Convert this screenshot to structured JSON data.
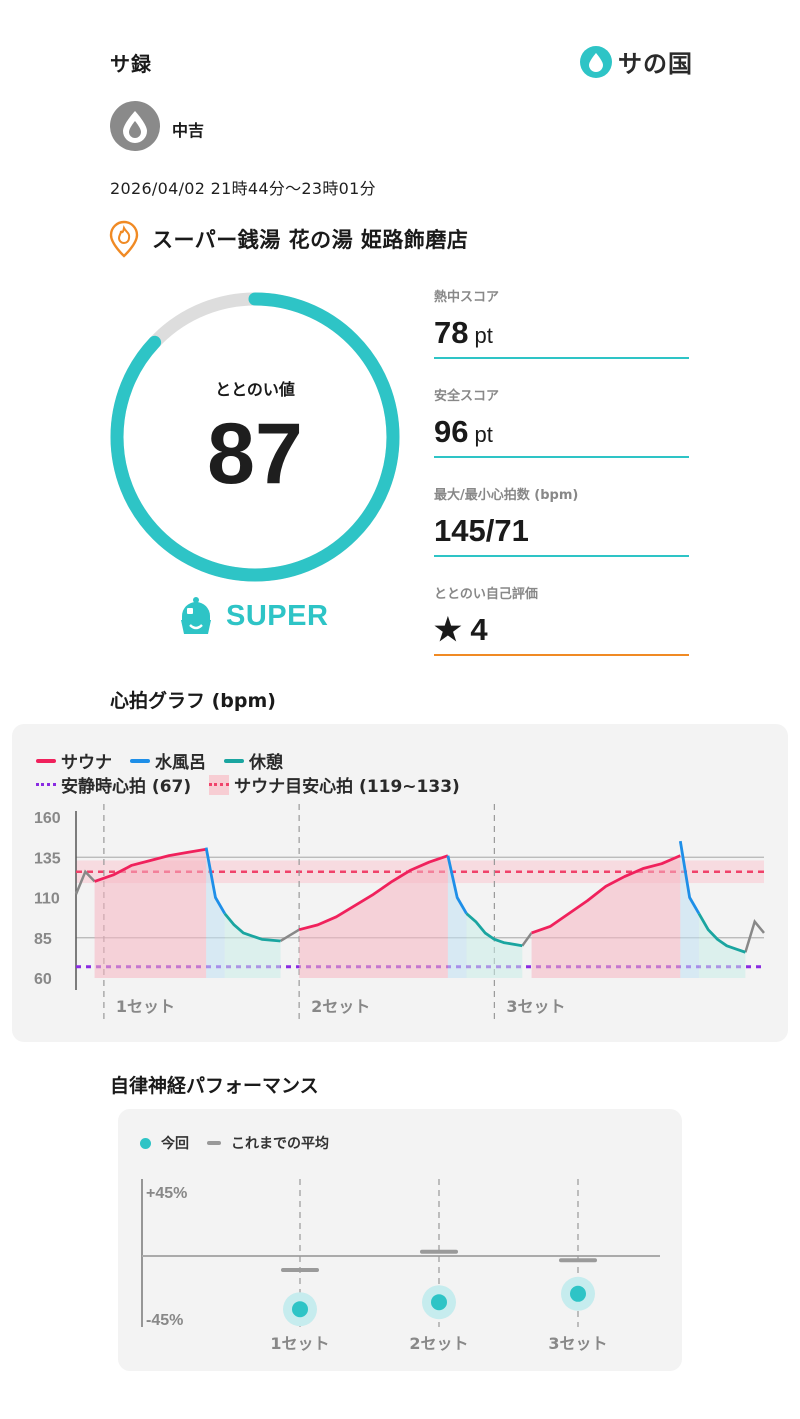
{
  "header": {
    "title": "サ録",
    "brand_name": "サの国"
  },
  "user": {
    "name": "中吉",
    "avatar_icon": "drop-icon"
  },
  "session": {
    "datetime": "2026/04/02 21時44分〜23時01分",
    "facility_name": "スーパー銭湯 花の湯 姫路飾磨店",
    "facility_icon": "sauna-location-pin-icon"
  },
  "totonoi": {
    "label": "ととのい値",
    "value": "87",
    "score_fraction": 0.87,
    "rank": "SUPER",
    "rank_icon": "super-helmet-icon"
  },
  "metrics": [
    {
      "label": "熱中スコア",
      "value": "78",
      "unit": "pt",
      "line_color": "#2ec4c6"
    },
    {
      "label": "安全スコア",
      "value": "96",
      "unit": "pt",
      "line_color": "#2ec4c6"
    },
    {
      "label": "最大/最小心拍数 (bpm)",
      "value": "145/71",
      "unit": "",
      "line_color": "#2ec4c6"
    },
    {
      "label": "ととのい自己評価",
      "value": "★ 4",
      "unit": "",
      "line_color": "#f08a24"
    }
  ],
  "hr_section": {
    "title": "心拍グラフ (bpm)",
    "legend": {
      "sauna": "サウナ",
      "cold": "水風呂",
      "rest": "休憩",
      "resting": "安静時心拍 (67)",
      "target": "サウナ目安心拍 (119~133)"
    },
    "colors": {
      "sauna": "#f0215c",
      "cold": "#1e8fe8",
      "rest": "#1aa5a0",
      "other": "#888888",
      "resting": "#8a2be2",
      "target": "#f0426a"
    }
  },
  "chart_data": {
    "type": "line",
    "title": "心拍グラフ (bpm)",
    "ylim": [
      60,
      160
    ],
    "yticks": [
      "160",
      "135",
      "110",
      "85",
      "60"
    ],
    "resting_hr": 67,
    "target_band": [
      119,
      133
    ],
    "set_labels": [
      "1セット",
      "2セット",
      "3セット"
    ],
    "x": [
      0,
      2,
      4,
      6,
      8,
      10,
      12,
      14,
      16,
      18,
      20,
      22,
      24,
      26,
      28,
      30,
      32,
      34,
      36,
      38,
      40,
      42,
      44,
      46,
      48,
      50,
      52,
      54,
      56,
      58,
      60,
      62,
      64,
      66,
      68,
      70,
      72,
      74
    ],
    "series": [
      {
        "name": "サウナ",
        "segments": [
          {
            "x": [
              2,
              4,
              6,
              8,
              10,
              12,
              14
            ],
            "y": [
              120,
              124,
              130,
              133,
              136,
              138,
              140
            ]
          },
          {
            "x": [
              24,
              26,
              28,
              30,
              32,
              34,
              36,
              38,
              40
            ],
            "y": [
              90,
              93,
              98,
              105,
              112,
              120,
              127,
              132,
              136
            ]
          },
          {
            "x": [
              49,
              51,
              53,
              55,
              57,
              59,
              61,
              63,
              65
            ],
            "y": [
              88,
              92,
              100,
              108,
              117,
              123,
              128,
              131,
              136
            ]
          }
        ]
      },
      {
        "name": "水風呂",
        "segments": [
          {
            "x": [
              14,
              15,
              16
            ],
            "y": [
              141,
              110,
              100
            ]
          },
          {
            "x": [
              40,
              41,
              42
            ],
            "y": [
              136,
              110,
              100
            ]
          },
          {
            "x": [
              65,
              66,
              67
            ],
            "y": [
              145,
              110,
              100
            ]
          }
        ]
      },
      {
        "name": "休憩",
        "segments": [
          {
            "x": [
              16,
              17,
              18,
              19,
              20,
              22
            ],
            "y": [
              100,
              93,
              88,
              86,
              84,
              83
            ]
          },
          {
            "x": [
              42,
              43,
              44,
              45,
              46,
              48
            ],
            "y": [
              100,
              95,
              88,
              84,
              82,
              80
            ]
          },
          {
            "x": [
              67,
              68,
              69,
              70,
              71,
              72
            ],
            "y": [
              100,
              90,
              84,
              80,
              78,
              76
            ]
          }
        ]
      }
    ]
  },
  "ans_section": {
    "title": "自律神経パフォーマンス",
    "legend_now": "今回",
    "legend_avg": "これまでの平均",
    "y_top": "+45%",
    "y_bottom": "-45%",
    "chart_data": {
      "type": "scatter",
      "categories": [
        "1セット",
        "2セット",
        "3セット"
      ],
      "ylim": [
        -45,
        45
      ],
      "series": [
        {
          "name": "今回",
          "values": [
            -38,
            -33,
            -27
          ]
        },
        {
          "name": "これまでの平均",
          "values": [
            -10,
            3,
            -3
          ]
        }
      ]
    }
  }
}
